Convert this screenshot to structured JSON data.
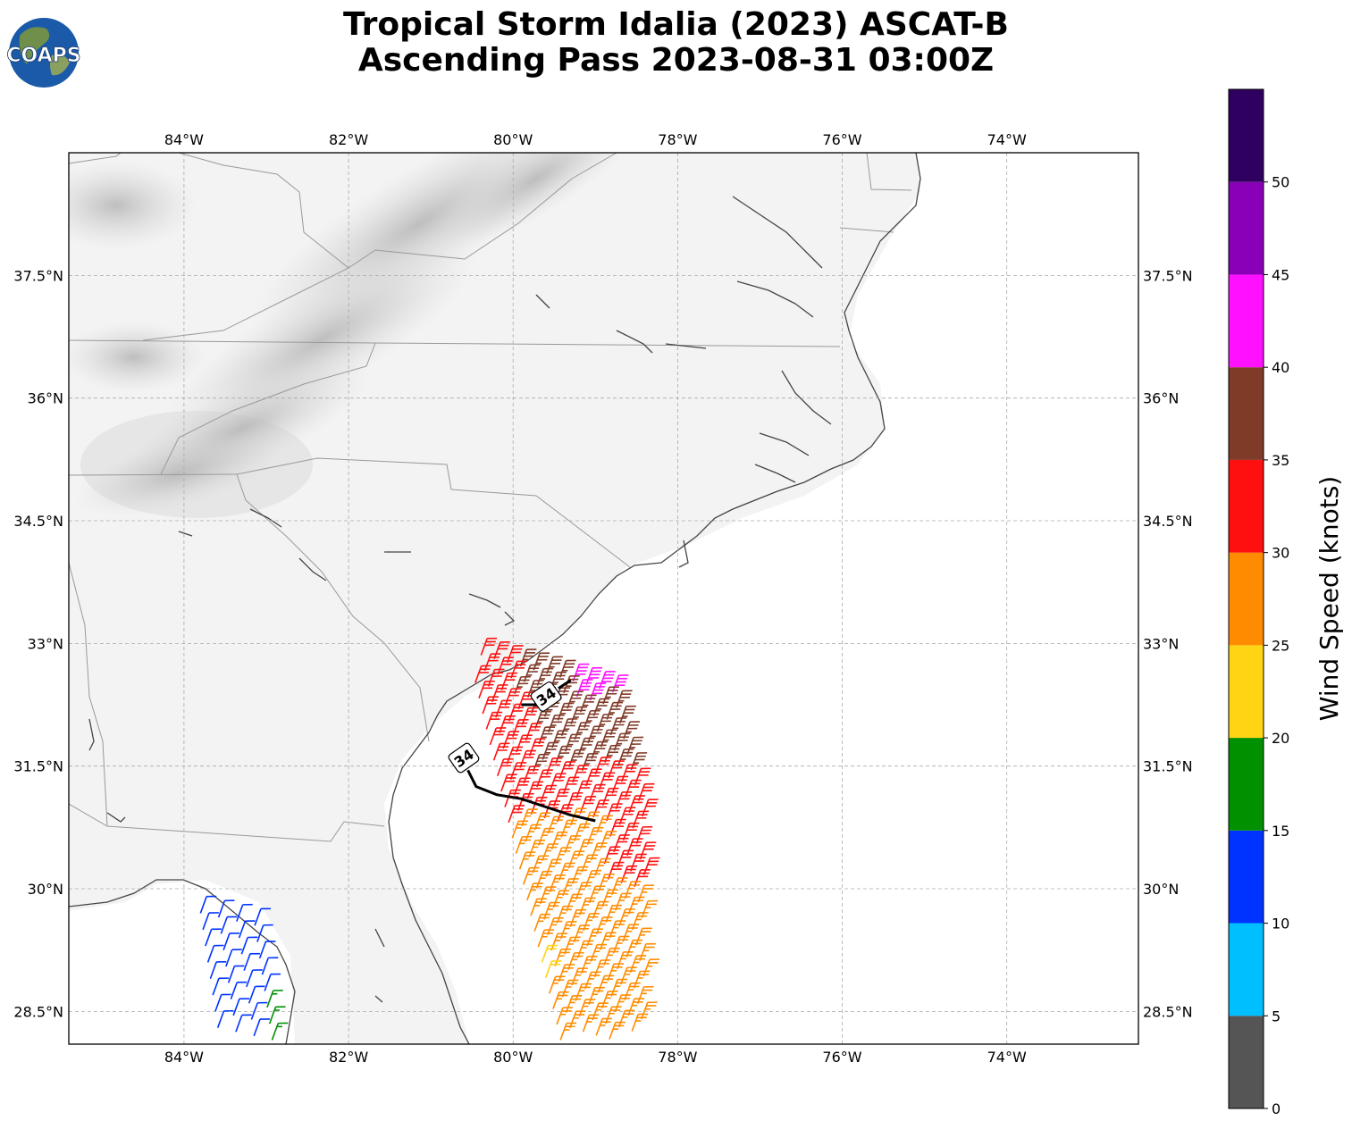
{
  "title": {
    "line1": "Tropical Storm Idalia (2023) ASCAT-B",
    "line2": "Ascending Pass 2023-08-31 03:00Z"
  },
  "logo": {
    "text": "COAPS"
  },
  "map": {
    "lon_range": [
      -85.4,
      -72.4
    ],
    "lat_range": [
      28.1,
      39.0
    ],
    "lon_ticks": [
      {
        "value": -84,
        "label": "84°W"
      },
      {
        "value": -82,
        "label": "82°W"
      },
      {
        "value": -80,
        "label": "80°W"
      },
      {
        "value": -78,
        "label": "78°W"
      },
      {
        "value": -76,
        "label": "76°W"
      },
      {
        "value": -74,
        "label": "74°W"
      }
    ],
    "lat_ticks": [
      {
        "value": 28.5,
        "label": "28.5°N"
      },
      {
        "value": 30.0,
        "label": "30°N"
      },
      {
        "value": 31.5,
        "label": "31.5°N"
      },
      {
        "value": 33.0,
        "label": "33°N"
      },
      {
        "value": 34.5,
        "label": "34.5°N"
      },
      {
        "value": 36.0,
        "label": "36°N"
      },
      {
        "value": 37.5,
        "label": "37.5°N"
      }
    ],
    "wind_contour": {
      "label": "34",
      "segments": [
        [
          [
            -79.9,
            32.25
          ],
          [
            -79.7,
            32.25
          ]
        ],
        [
          [
            -79.45,
            32.45
          ],
          [
            -79.3,
            32.55
          ]
        ],
        [
          [
            -80.55,
            31.45
          ],
          [
            -80.45,
            31.25
          ],
          [
            -80.2,
            31.15
          ],
          [
            -79.9,
            31.1
          ],
          [
            -79.6,
            31.0
          ],
          [
            -79.3,
            30.9
          ],
          [
            -79.0,
            30.83
          ]
        ]
      ],
      "label_positions": [
        [
          -79.6,
          32.35
        ],
        [
          -80.6,
          31.6
        ]
      ]
    }
  },
  "colorbar": {
    "label": "Wind Speed (knots)",
    "min": 0,
    "max": 55,
    "tick_labels": [
      "0",
      "5",
      "10",
      "15",
      "20",
      "25",
      "30",
      "35",
      "40",
      "45",
      "50"
    ],
    "bins": [
      {
        "from": 0,
        "to": 5,
        "color": "#555555"
      },
      {
        "from": 5,
        "to": 10,
        "color": "#00bfff"
      },
      {
        "from": 10,
        "to": 15,
        "color": "#0033ff"
      },
      {
        "from": 15,
        "to": 20,
        "color": "#009000"
      },
      {
        "from": 20,
        "to": 25,
        "color": "#ffd414"
      },
      {
        "from": 25,
        "to": 30,
        "color": "#ff8c00"
      },
      {
        "from": 30,
        "to": 35,
        "color": "#ff1010"
      },
      {
        "from": 35,
        "to": 40,
        "color": "#7f3a28"
      },
      {
        "from": 40,
        "to": 45,
        "color": "#ff10ff"
      },
      {
        "from": 45,
        "to": 50,
        "color": "#8a00b8"
      },
      {
        "from": 50,
        "to": 55,
        "color": "#300060"
      }
    ]
  }
}
